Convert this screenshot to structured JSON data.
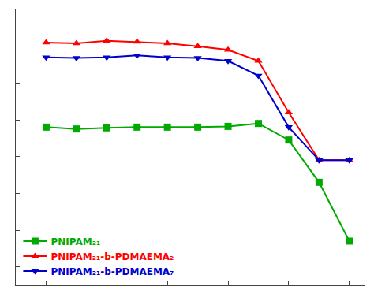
{
  "chart_data": {
    "type": "line",
    "x": [
      20,
      22,
      24,
      26,
      28,
      30,
      32,
      34,
      36,
      38,
      40
    ],
    "series": [
      {
        "name": "PNIPAM₂₁",
        "color": "#00aa00",
        "marker": "square",
        "values": [
          580,
          575,
          578,
          580,
          580,
          580,
          582,
          590,
          545,
          430,
          270
        ]
      },
      {
        "name": "PNIPAM₂₁-b-PDMAEMA₂",
        "color": "#ff0000",
        "marker": "triangle-up",
        "values": [
          810,
          808,
          815,
          812,
          808,
          800,
          790,
          760,
          620,
          490,
          490
        ]
      },
      {
        "name": "PNIPAM₂₁-b-PDMAEMA₇",
        "color": "#0000cc",
        "marker": "triangle-down",
        "values": [
          770,
          768,
          770,
          775,
          770,
          768,
          760,
          720,
          580,
          490,
          490
        ]
      }
    ],
    "xlim": [
      18,
      41
    ],
    "xticks": [
      20,
      24,
      28,
      32,
      36,
      40
    ],
    "ylim": [
      150,
      900
    ],
    "yticks": [
      200,
      300,
      400,
      500,
      600,
      700,
      800,
      900
    ],
    "tick_labels": false,
    "grid": false,
    "legend": "lower left"
  }
}
